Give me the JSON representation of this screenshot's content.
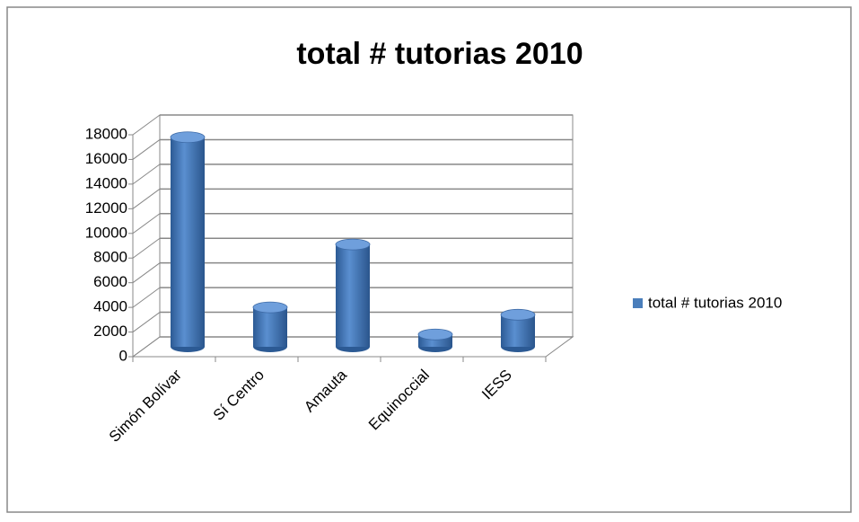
{
  "chart_data": {
    "type": "bar",
    "title": "total # tutorias 2010",
    "categories": [
      "Simón Bolívar",
      "Sí Centro",
      "Amauta",
      "Equinoccial",
      "IESS"
    ],
    "series": [
      {
        "name": "total # tutorias 2010",
        "color": "#4a7ebb",
        "values": [
          17000,
          3200,
          8300,
          1000,
          2600
        ]
      }
    ],
    "ylim": [
      0,
      18000
    ],
    "yticks": [
      0,
      2000,
      4000,
      6000,
      8000,
      10000,
      12000,
      14000,
      16000,
      18000
    ],
    "grid": true,
    "legend": "right"
  }
}
